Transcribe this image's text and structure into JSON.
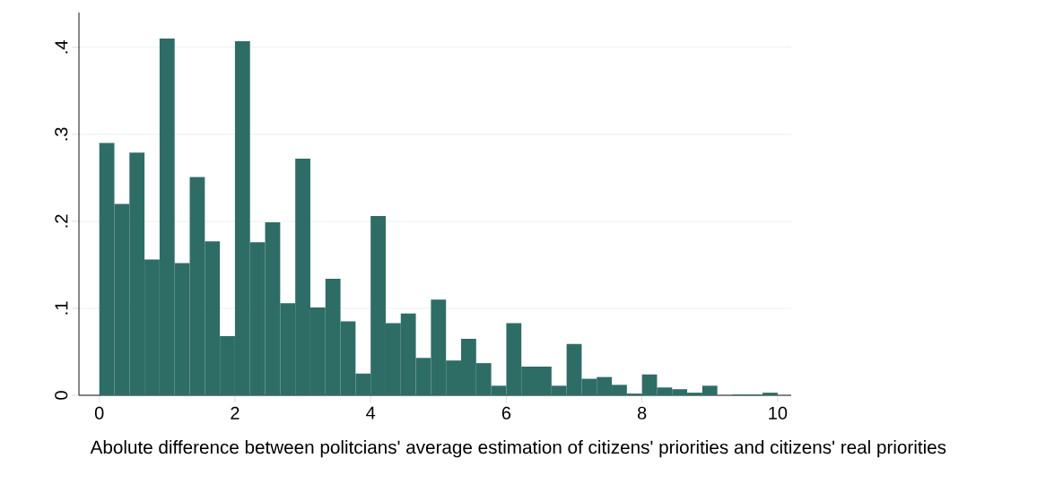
{
  "chart_data": {
    "type": "histogram",
    "xlabel": "Abolute difference between politcians' average estimation of citizens' priorities and citizens' real priorities",
    "bins": [
      0,
      0.2222,
      0.4444,
      0.6667,
      0.8889,
      1.1111,
      1.3333,
      1.5556,
      1.7778,
      2,
      2.2222,
      2.4444,
      2.6667,
      2.8889,
      3.1111,
      3.3333,
      3.5556,
      3.7778,
      4,
      4.2222,
      4.4444,
      4.6667,
      4.8889,
      5.1111,
      5.3333,
      5.5556,
      5.7778,
      6,
      6.2222,
      6.4444,
      6.6667,
      6.8889,
      7.1111,
      7.3333,
      7.5556,
      7.7778,
      8,
      8.2222,
      8.4444,
      8.6667,
      8.8889,
      9.1111,
      9.3333,
      9.5556,
      9.7778,
      10
    ],
    "values": [
      0.29,
      0.22,
      0.279,
      0.156,
      0.41,
      0.152,
      0.251,
      0.177,
      0.068,
      0.407,
      0.176,
      0.199,
      0.106,
      0.272,
      0.101,
      0.134,
      0.085,
      0.025,
      0.206,
      0.083,
      0.094,
      0.043,
      0.11,
      0.04,
      0.065,
      0.037,
      0.011,
      0.083,
      0.033,
      0.033,
      0.011,
      0.059,
      0.019,
      0.021,
      0.012,
      0.002,
      0.024,
      0.009,
      0.007,
      0.003,
      0.011,
      0,
      0.001,
      0.001,
      0.003
    ],
    "color": "#2e6d66",
    "xlim": [
      -0.3,
      10.2
    ],
    "ylim": [
      0,
      0.44
    ],
    "xticks": [
      0,
      2,
      4,
      6,
      8,
      10
    ],
    "yticks": [
      0,
      {
        "value": 0.1,
        "label": ".1"
      },
      {
        "value": 0.2,
        "label": ".2"
      },
      {
        "value": 0.3,
        "label": ".3"
      },
      {
        "value": 0.4,
        "label": ".4"
      }
    ],
    "grid": "y"
  }
}
